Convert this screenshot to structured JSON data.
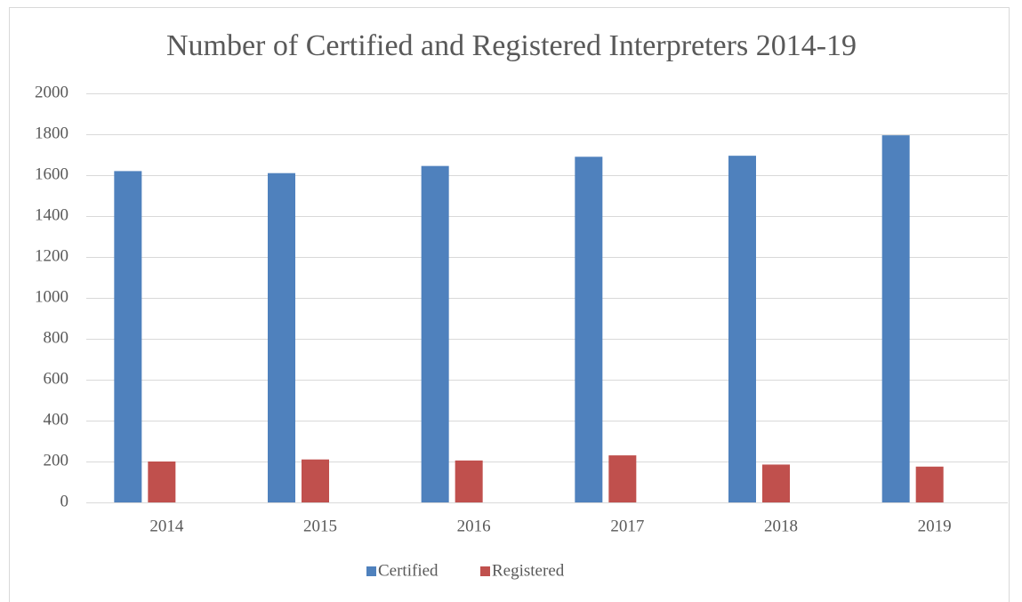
{
  "chart_data": {
    "type": "bar",
    "title": "Number of Certified and Registered Interpreters 2014-19",
    "categories": [
      "2014",
      "2015",
      "2016",
      "2017",
      "2018",
      "2019"
    ],
    "series": [
      {
        "name": "Certified",
        "color": "#4f81bd",
        "values": [
          1620,
          1610,
          1645,
          1690,
          1695,
          1795
        ]
      },
      {
        "name": "Registered",
        "color": "#c0504d",
        "values": [
          200,
          210,
          205,
          230,
          185,
          175
        ]
      }
    ],
    "ylim": [
      0,
      2000
    ],
    "yticks": [
      0,
      200,
      400,
      600,
      800,
      1000,
      1200,
      1400,
      1600,
      1800,
      2000
    ],
    "grid": true,
    "legend": "bottom"
  }
}
